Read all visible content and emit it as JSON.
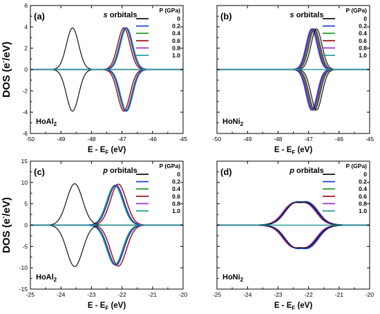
{
  "legend_title": "P (GPa)",
  "series_colors": [
    "#111111",
    "#1f3fd8",
    "#2e9e2e",
    "#a11f1f",
    "#9b30d9",
    "#2a9d9d"
  ],
  "chart_data": [
    {
      "type": "line",
      "panel": "(a)",
      "title_italic": "s",
      "title_rest": " orbitals",
      "compound": "HoAl",
      "compound_sub": "2",
      "ylabel": "DOS (e",
      "ylabel_sup": "-",
      "ylabel_rest": "/eV)",
      "xlabel": "E - E",
      "xlabel_sub": "F",
      "xlabel_rest": " (eV)",
      "xlim": [
        -50,
        -45
      ],
      "ylim": [
        -6,
        6
      ],
      "xticks": [
        -50,
        -49,
        -48,
        -47,
        -46,
        -45
      ],
      "xtick_labels": [
        "-50",
        "-49",
        "-48",
        "-47",
        "-46",
        "-45"
      ],
      "yticks": [
        -6,
        -4,
        -2,
        0,
        2,
        4,
        6
      ],
      "ytick_labels": [
        "-6",
        "-4",
        "-2",
        "0",
        "2",
        "4",
        "6"
      ],
      "series": [
        {
          "name": "0",
          "peak_center": -48.62,
          "peak_height": 3.9,
          "peak_width": 0.2
        },
        {
          "name": "0.2",
          "peak_center": -46.88,
          "peak_height": 3.9,
          "peak_width": 0.2
        },
        {
          "name": "0.4",
          "peak_center": -46.86,
          "peak_height": 3.9,
          "peak_width": 0.2
        },
        {
          "name": "0.6",
          "peak_center": -46.94,
          "peak_height": 3.9,
          "peak_width": 0.2
        },
        {
          "name": "0.8",
          "peak_center": -46.86,
          "peak_height": 3.9,
          "peak_width": 0.2
        },
        {
          "name": "1.0",
          "peak_center": -46.85,
          "peak_height": 3.9,
          "peak_width": 0.2
        }
      ]
    },
    {
      "type": "line",
      "panel": "(b)",
      "title_italic": "s",
      "title_rest": " orbitals",
      "compound": "HoNi",
      "compound_sub": "2",
      "ylabel": "",
      "xlabel": "E - E",
      "xlabel_sub": "F",
      "xlabel_rest": " (eV)",
      "xlim": [
        -50,
        -45
      ],
      "ylim": [
        -6,
        6
      ],
      "xticks": [
        -50,
        -49,
        -48,
        -47,
        -46,
        -45
      ],
      "xtick_labels": [
        "-50",
        "-49",
        "-48",
        "-47",
        "-46",
        "-45"
      ],
      "yticks": [
        -6,
        -4,
        -2,
        0,
        2,
        4,
        6
      ],
      "ytick_labels": [
        "",
        "",
        "",
        "",
        "",
        "",
        ""
      ],
      "series": [
        {
          "name": "0",
          "peak_center": -46.74,
          "peak_height": 3.8,
          "peak_width": 0.18
        },
        {
          "name": "0.2",
          "peak_center": -46.88,
          "peak_height": 3.8,
          "peak_width": 0.18
        },
        {
          "name": "0.4",
          "peak_center": -46.86,
          "peak_height": 3.8,
          "peak_width": 0.18
        },
        {
          "name": "0.6",
          "peak_center": -46.82,
          "peak_height": 3.8,
          "peak_width": 0.18
        },
        {
          "name": "0.8",
          "peak_center": -46.9,
          "peak_height": 3.8,
          "peak_width": 0.18
        },
        {
          "name": "1.0",
          "peak_center": -46.8,
          "peak_height": 3.8,
          "peak_width": 0.18
        }
      ]
    },
    {
      "type": "line",
      "panel": "(c)",
      "title_italic": "p",
      "title_rest": " orbitals",
      "compound": "HoAl",
      "compound_sub": "2",
      "ylabel": "DOS (e",
      "ylabel_sup": "-",
      "ylabel_rest": "/eV)",
      "xlabel": "E - E",
      "xlabel_sub": "F",
      "xlabel_rest": " (eV)",
      "xlim": [
        -25,
        -20
      ],
      "ylim": [
        -15,
        15
      ],
      "xticks": [
        -25,
        -24,
        -23,
        -22,
        -21,
        -20
      ],
      "xtick_labels": [
        "-25",
        "-24",
        "-23",
        "-22",
        "-21",
        "-20"
      ],
      "yticks": [
        -15,
        -10,
        -5,
        0,
        5,
        10,
        15
      ],
      "ytick_labels": [
        "-15",
        "-10",
        "-5",
        "0",
        "5",
        "10",
        "15"
      ],
      "series": [
        {
          "name": "0",
          "peak_center": -23.55,
          "peak_height": 9.7,
          "peak_width": 0.26
        },
        {
          "name": "0.2",
          "peak_center": -22.2,
          "peak_height": 9.3,
          "peak_width": 0.26
        },
        {
          "name": "0.4",
          "peak_center": -22.22,
          "peak_height": 9.3,
          "peak_width": 0.26
        },
        {
          "name": "0.6",
          "peak_center": -22.12,
          "peak_height": 9.6,
          "peak_width": 0.26
        },
        {
          "name": "0.8",
          "peak_center": -22.2,
          "peak_height": 9.4,
          "peak_width": 0.26
        },
        {
          "name": "1.0",
          "peak_center": -22.24,
          "peak_height": 9.3,
          "peak_width": 0.26
        }
      ]
    },
    {
      "type": "line",
      "panel": "(d)",
      "title_italic": "p",
      "title_rest": " orbitals",
      "compound": "HoNi",
      "compound_sub": "2",
      "ylabel": "",
      "xlabel": "E - E",
      "xlabel_sub": "F",
      "xlabel_rest": " (eV)",
      "xlim": [
        -25,
        -20
      ],
      "ylim": [
        -15,
        15
      ],
      "xticks": [
        -25,
        -24,
        -23,
        -22,
        -21,
        -20
      ],
      "xtick_labels": [
        "-25",
        "-24",
        "-23",
        "-22",
        "-21",
        "-20"
      ],
      "yticks": [
        -15,
        -10,
        -5,
        0,
        5,
        10,
        15
      ],
      "ytick_labels": [
        "",
        "",
        "",
        "",
        "",
        "",
        ""
      ],
      "series": [
        {
          "name": "0",
          "plateau_center": -22.25,
          "plateau_halfwidth": 0.55,
          "peak_height": 6.0,
          "edge_width": 0.16
        },
        {
          "name": "0.2",
          "plateau_center": -22.22,
          "plateau_halfwidth": 0.55,
          "peak_height": 6.2,
          "edge_width": 0.16
        },
        {
          "name": "0.4",
          "plateau_center": -22.24,
          "plateau_halfwidth": 0.55,
          "peak_height": 6.1,
          "edge_width": 0.16
        },
        {
          "name": "0.6",
          "plateau_center": -22.26,
          "plateau_halfwidth": 0.55,
          "peak_height": 6.0,
          "edge_width": 0.16
        },
        {
          "name": "0.8",
          "plateau_center": -22.3,
          "plateau_halfwidth": 0.55,
          "peak_height": 6.0,
          "edge_width": 0.16
        },
        {
          "name": "1.0",
          "plateau_center": -22.24,
          "plateau_halfwidth": 0.55,
          "peak_height": 6.1,
          "edge_width": 0.16
        }
      ]
    }
  ]
}
